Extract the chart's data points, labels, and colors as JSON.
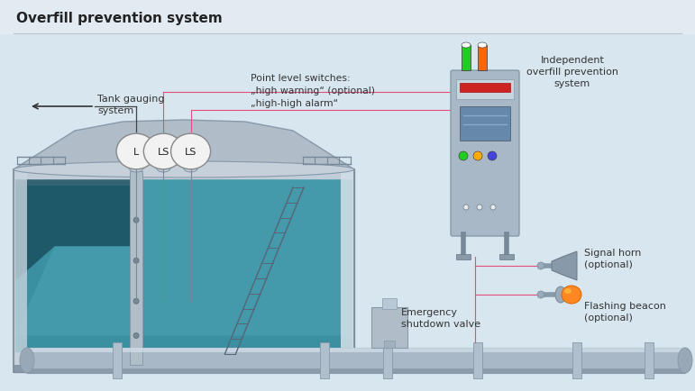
{
  "title": "Overfill prevention system",
  "bg_color": "#d8e6ef",
  "title_color": "#222222",
  "labels": {
    "tank_gauging": "Tank gauging\nsystem",
    "point_level": "Point level switches:\n„high warning“ (optional)\n„high-high alarm“",
    "independent": "Independent\noverfill prevention\nsystem",
    "signal_horn": "Signal horn\n(optional)",
    "flashing_beacon": "Flashing beacon\n(optional)",
    "emergency_valve": "Emergency\nshutdown valve",
    "L": "L",
    "LS": "LS"
  },
  "pink": "#e0507a",
  "dark_line": "#444444",
  "tank_body_color": "#8899aa",
  "tank_light": "#b8c8d8",
  "liquid_color": "#3a8fa0",
  "liquid_dark": "#2a7080",
  "liquid_light": "#5ab0c0",
  "pipe_color": "#a0b0be",
  "panel_color": "#a0aebb",
  "instrument_color": "#f2f2f2"
}
